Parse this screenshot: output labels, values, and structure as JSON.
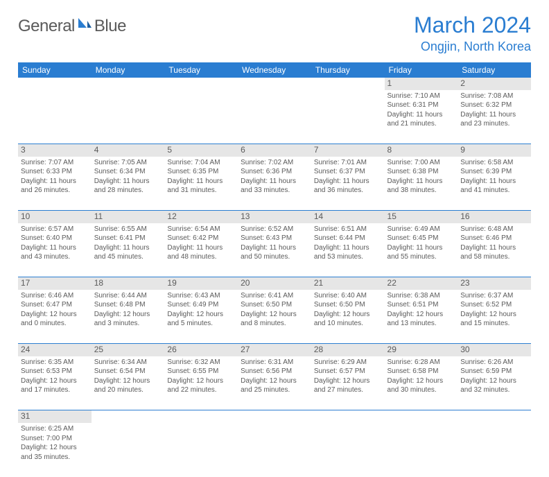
{
  "logo": {
    "text1": "General",
    "text2": "Blue",
    "sail_color": "#2a7dd1"
  },
  "header": {
    "title": "March 2024",
    "location": "Ongjin, North Korea"
  },
  "colors": {
    "header_bg": "#2a7dd1",
    "header_text": "#ffffff",
    "daynum_bg": "#e6e6e6",
    "text": "#5a5a5a",
    "rule": "#2a7dd1",
    "page_bg": "#ffffff"
  },
  "typography": {
    "title_fontsize": 32,
    "location_fontsize": 18,
    "dayheader_fontsize": 12,
    "daynum_fontsize": 12,
    "cell_fontsize": 10
  },
  "dayHeaders": [
    "Sunday",
    "Monday",
    "Tuesday",
    "Wednesday",
    "Thursday",
    "Friday",
    "Saturday"
  ],
  "weeks": [
    [
      null,
      null,
      null,
      null,
      null,
      {
        "n": "1",
        "sr": "7:10 AM",
        "ss": "6:31 PM",
        "dl": "11 hours and 21 minutes."
      },
      {
        "n": "2",
        "sr": "7:08 AM",
        "ss": "6:32 PM",
        "dl": "11 hours and 23 minutes."
      }
    ],
    [
      {
        "n": "3",
        "sr": "7:07 AM",
        "ss": "6:33 PM",
        "dl": "11 hours and 26 minutes."
      },
      {
        "n": "4",
        "sr": "7:05 AM",
        "ss": "6:34 PM",
        "dl": "11 hours and 28 minutes."
      },
      {
        "n": "5",
        "sr": "7:04 AM",
        "ss": "6:35 PM",
        "dl": "11 hours and 31 minutes."
      },
      {
        "n": "6",
        "sr": "7:02 AM",
        "ss": "6:36 PM",
        "dl": "11 hours and 33 minutes."
      },
      {
        "n": "7",
        "sr": "7:01 AM",
        "ss": "6:37 PM",
        "dl": "11 hours and 36 minutes."
      },
      {
        "n": "8",
        "sr": "7:00 AM",
        "ss": "6:38 PM",
        "dl": "11 hours and 38 minutes."
      },
      {
        "n": "9",
        "sr": "6:58 AM",
        "ss": "6:39 PM",
        "dl": "11 hours and 41 minutes."
      }
    ],
    [
      {
        "n": "10",
        "sr": "6:57 AM",
        "ss": "6:40 PM",
        "dl": "11 hours and 43 minutes."
      },
      {
        "n": "11",
        "sr": "6:55 AM",
        "ss": "6:41 PM",
        "dl": "11 hours and 45 minutes."
      },
      {
        "n": "12",
        "sr": "6:54 AM",
        "ss": "6:42 PM",
        "dl": "11 hours and 48 minutes."
      },
      {
        "n": "13",
        "sr": "6:52 AM",
        "ss": "6:43 PM",
        "dl": "11 hours and 50 minutes."
      },
      {
        "n": "14",
        "sr": "6:51 AM",
        "ss": "6:44 PM",
        "dl": "11 hours and 53 minutes."
      },
      {
        "n": "15",
        "sr": "6:49 AM",
        "ss": "6:45 PM",
        "dl": "11 hours and 55 minutes."
      },
      {
        "n": "16",
        "sr": "6:48 AM",
        "ss": "6:46 PM",
        "dl": "11 hours and 58 minutes."
      }
    ],
    [
      {
        "n": "17",
        "sr": "6:46 AM",
        "ss": "6:47 PM",
        "dl": "12 hours and 0 minutes."
      },
      {
        "n": "18",
        "sr": "6:44 AM",
        "ss": "6:48 PM",
        "dl": "12 hours and 3 minutes."
      },
      {
        "n": "19",
        "sr": "6:43 AM",
        "ss": "6:49 PM",
        "dl": "12 hours and 5 minutes."
      },
      {
        "n": "20",
        "sr": "6:41 AM",
        "ss": "6:50 PM",
        "dl": "12 hours and 8 minutes."
      },
      {
        "n": "21",
        "sr": "6:40 AM",
        "ss": "6:50 PM",
        "dl": "12 hours and 10 minutes."
      },
      {
        "n": "22",
        "sr": "6:38 AM",
        "ss": "6:51 PM",
        "dl": "12 hours and 13 minutes."
      },
      {
        "n": "23",
        "sr": "6:37 AM",
        "ss": "6:52 PM",
        "dl": "12 hours and 15 minutes."
      }
    ],
    [
      {
        "n": "24",
        "sr": "6:35 AM",
        "ss": "6:53 PM",
        "dl": "12 hours and 17 minutes."
      },
      {
        "n": "25",
        "sr": "6:34 AM",
        "ss": "6:54 PM",
        "dl": "12 hours and 20 minutes."
      },
      {
        "n": "26",
        "sr": "6:32 AM",
        "ss": "6:55 PM",
        "dl": "12 hours and 22 minutes."
      },
      {
        "n": "27",
        "sr": "6:31 AM",
        "ss": "6:56 PM",
        "dl": "12 hours and 25 minutes."
      },
      {
        "n": "28",
        "sr": "6:29 AM",
        "ss": "6:57 PM",
        "dl": "12 hours and 27 minutes."
      },
      {
        "n": "29",
        "sr": "6:28 AM",
        "ss": "6:58 PM",
        "dl": "12 hours and 30 minutes."
      },
      {
        "n": "30",
        "sr": "6:26 AM",
        "ss": "6:59 PM",
        "dl": "12 hours and 32 minutes."
      }
    ],
    [
      {
        "n": "31",
        "sr": "6:25 AM",
        "ss": "7:00 PM",
        "dl": "12 hours and 35 minutes."
      },
      null,
      null,
      null,
      null,
      null,
      null
    ]
  ],
  "labels": {
    "sunrise": "Sunrise:",
    "sunset": "Sunset:",
    "daylight": "Daylight:"
  }
}
